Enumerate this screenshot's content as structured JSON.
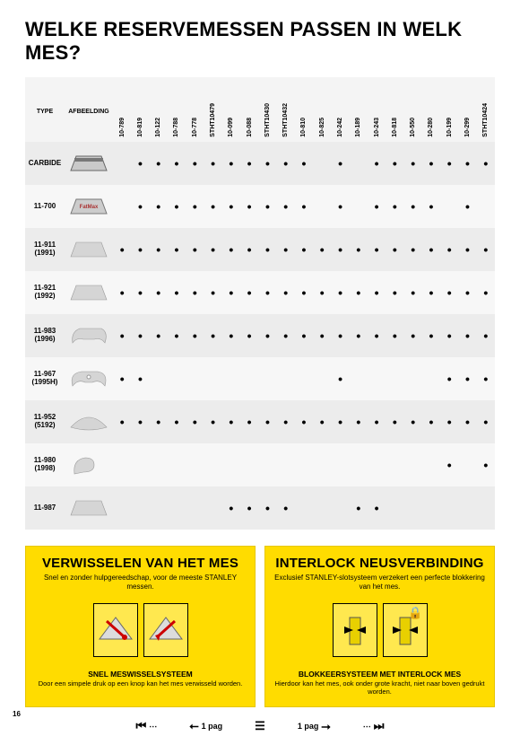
{
  "title": "WELKE RESERVEMESSEN PASSEN IN WELK MES?",
  "page_number": "16",
  "table": {
    "type_header": "TYPE",
    "image_header": "AFBEELDING",
    "columns": [
      "10-789",
      "10-819",
      "10-122",
      "10-788",
      "10-778",
      "STHT10479",
      "10-099",
      "10-088",
      "STHT10430",
      "STHT10432",
      "10-810",
      "10-825",
      "10-242",
      "10-189",
      "10-243",
      "10-818",
      "10-550",
      "10-280",
      "10-199",
      "10-299",
      "STHT10424"
    ],
    "rows": [
      {
        "type": "CARBIDE",
        "sub": "",
        "blade": "carbide",
        "dots": [
          0,
          1,
          1,
          1,
          1,
          1,
          1,
          1,
          1,
          1,
          1,
          0,
          1,
          0,
          1,
          1,
          1,
          1,
          1,
          1,
          1
        ]
      },
      {
        "type": "11-700",
        "sub": "",
        "blade": "fatmax",
        "dots": [
          0,
          1,
          1,
          1,
          1,
          1,
          1,
          1,
          1,
          1,
          1,
          0,
          1,
          0,
          1,
          1,
          1,
          1,
          0,
          1,
          0
        ]
      },
      {
        "type": "11-911",
        "sub": "(1991)",
        "blade": "trap",
        "dots": [
          1,
          1,
          1,
          1,
          1,
          1,
          1,
          1,
          1,
          1,
          1,
          1,
          1,
          1,
          1,
          1,
          1,
          1,
          1,
          1,
          1
        ]
      },
      {
        "type": "11-921",
        "sub": "(1992)",
        "blade": "trap",
        "dots": [
          1,
          1,
          1,
          1,
          1,
          1,
          1,
          1,
          1,
          1,
          1,
          1,
          1,
          1,
          1,
          1,
          1,
          1,
          1,
          1,
          1
        ]
      },
      {
        "type": "11-983",
        "sub": "(1996)",
        "blade": "hook",
        "dots": [
          1,
          1,
          1,
          1,
          1,
          1,
          1,
          1,
          1,
          1,
          1,
          1,
          1,
          1,
          1,
          1,
          1,
          1,
          1,
          1,
          1
        ]
      },
      {
        "type": "11-967",
        "sub": "(1995H)",
        "blade": "hook2",
        "dots": [
          1,
          1,
          0,
          0,
          0,
          0,
          0,
          0,
          0,
          0,
          0,
          0,
          1,
          0,
          0,
          0,
          0,
          0,
          1,
          1,
          1
        ]
      },
      {
        "type": "11-952",
        "sub": "(5192)",
        "blade": "concave",
        "dots": [
          1,
          1,
          1,
          1,
          1,
          1,
          1,
          1,
          1,
          1,
          1,
          1,
          1,
          1,
          1,
          1,
          1,
          1,
          1,
          1,
          1
        ]
      },
      {
        "type": "11-980",
        "sub": "(1998)",
        "blade": "hookthin",
        "dots": [
          0,
          0,
          0,
          0,
          0,
          0,
          0,
          0,
          0,
          0,
          0,
          0,
          0,
          0,
          0,
          0,
          0,
          0,
          1,
          0,
          1
        ]
      },
      {
        "type": "11-987",
        "sub": "",
        "blade": "trap",
        "dots": [
          0,
          0,
          0,
          0,
          0,
          0,
          1,
          1,
          1,
          1,
          0,
          0,
          0,
          1,
          1,
          0,
          0,
          0,
          0,
          0,
          0
        ]
      }
    ]
  },
  "box_left": {
    "title": "VERWISSELEN VAN HET MES",
    "sub": "Snel en zonder hulpgereedschap,\nvoor de meeste STANLEY messen.",
    "h3": "SNEL MESWISSELSYSTEEM",
    "desc": "Door een simpele druk op een knop\nkan het mes verwisseld worden."
  },
  "box_right": {
    "title": "INTERLOCK NEUSVERBINDING",
    "sub": "Exclusief STANLEY-slotsysteem verzekert\neen perfecte blokkering van het mes.",
    "h3": "BLOKKEERSYSTEEM MET INTERLOCK MES",
    "desc": "Hierdoor kan het mes, ook onder grote kracht,\nniet naar boven gedrukt worden."
  },
  "pager": {
    "prev": "1 pag",
    "next": "1 pag"
  },
  "colors": {
    "yellow": "#ffdc00",
    "row_odd": "#ececec",
    "row_even": "#f7f7f7",
    "head": "#f4f4f4"
  }
}
